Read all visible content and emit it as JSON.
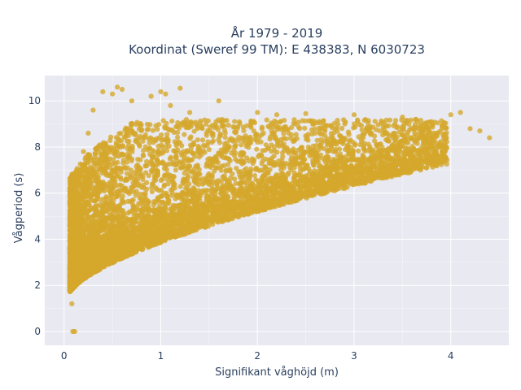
{
  "chart_data": {
    "type": "scatter",
    "title": "År 1979 - 2019",
    "subtitle": "Koordinat (Sweref 99 TM): E 438383, N 6030723",
    "xlabel": "Signifikant våghöjd (m)",
    "ylabel": "Vågperiod (s)",
    "xlim": [
      -0.2,
      4.6
    ],
    "ylim": [
      -0.6,
      11.1
    ],
    "xticks": [
      0,
      1,
      2,
      3,
      4
    ],
    "yticks": [
      0,
      2,
      4,
      6,
      8,
      10
    ],
    "grid": true,
    "marker_color": "#D4A72C",
    "background_color": "#E8E9F1",
    "series": [
      {
        "points": [
          [
            0.08,
            1.2
          ],
          [
            0.1,
            2.0
          ],
          [
            0.1,
            3.5
          ],
          [
            0.12,
            5.0
          ],
          [
            0.15,
            6.5
          ],
          [
            0.2,
            7.8
          ],
          [
            0.25,
            8.6
          ],
          [
            0.3,
            9.6
          ],
          [
            0.4,
            10.4
          ],
          [
            0.5,
            10.3
          ],
          [
            0.55,
            10.6
          ],
          [
            0.6,
            10.5
          ],
          [
            0.7,
            10.0
          ],
          [
            0.9,
            10.2
          ],
          [
            1.0,
            10.4
          ],
          [
            1.05,
            10.3
          ],
          [
            1.1,
            9.8
          ],
          [
            1.2,
            10.55
          ],
          [
            1.3,
            9.5
          ],
          [
            1.6,
            10.0
          ],
          [
            2.0,
            9.5
          ],
          [
            2.2,
            9.4
          ],
          [
            2.5,
            9.45
          ],
          [
            3.0,
            9.4
          ],
          [
            3.5,
            9.3
          ],
          [
            3.8,
            9.1
          ],
          [
            4.0,
            9.4
          ],
          [
            4.1,
            9.5
          ],
          [
            4.2,
            8.8
          ],
          [
            4.3,
            8.7
          ],
          [
            4.4,
            8.4
          ],
          [
            0.2,
            2.5
          ],
          [
            0.4,
            3.0
          ],
          [
            0.6,
            3.8
          ],
          [
            0.8,
            4.0
          ],
          [
            1.0,
            4.2
          ],
          [
            1.2,
            4.4
          ],
          [
            1.5,
            4.8
          ],
          [
            2.0,
            5.4
          ],
          [
            2.5,
            6.0
          ],
          [
            3.0,
            6.5
          ],
          [
            3.5,
            7.0
          ],
          [
            0.09,
            0.0
          ],
          [
            0.11,
            0.0
          ]
        ]
      }
    ]
  }
}
